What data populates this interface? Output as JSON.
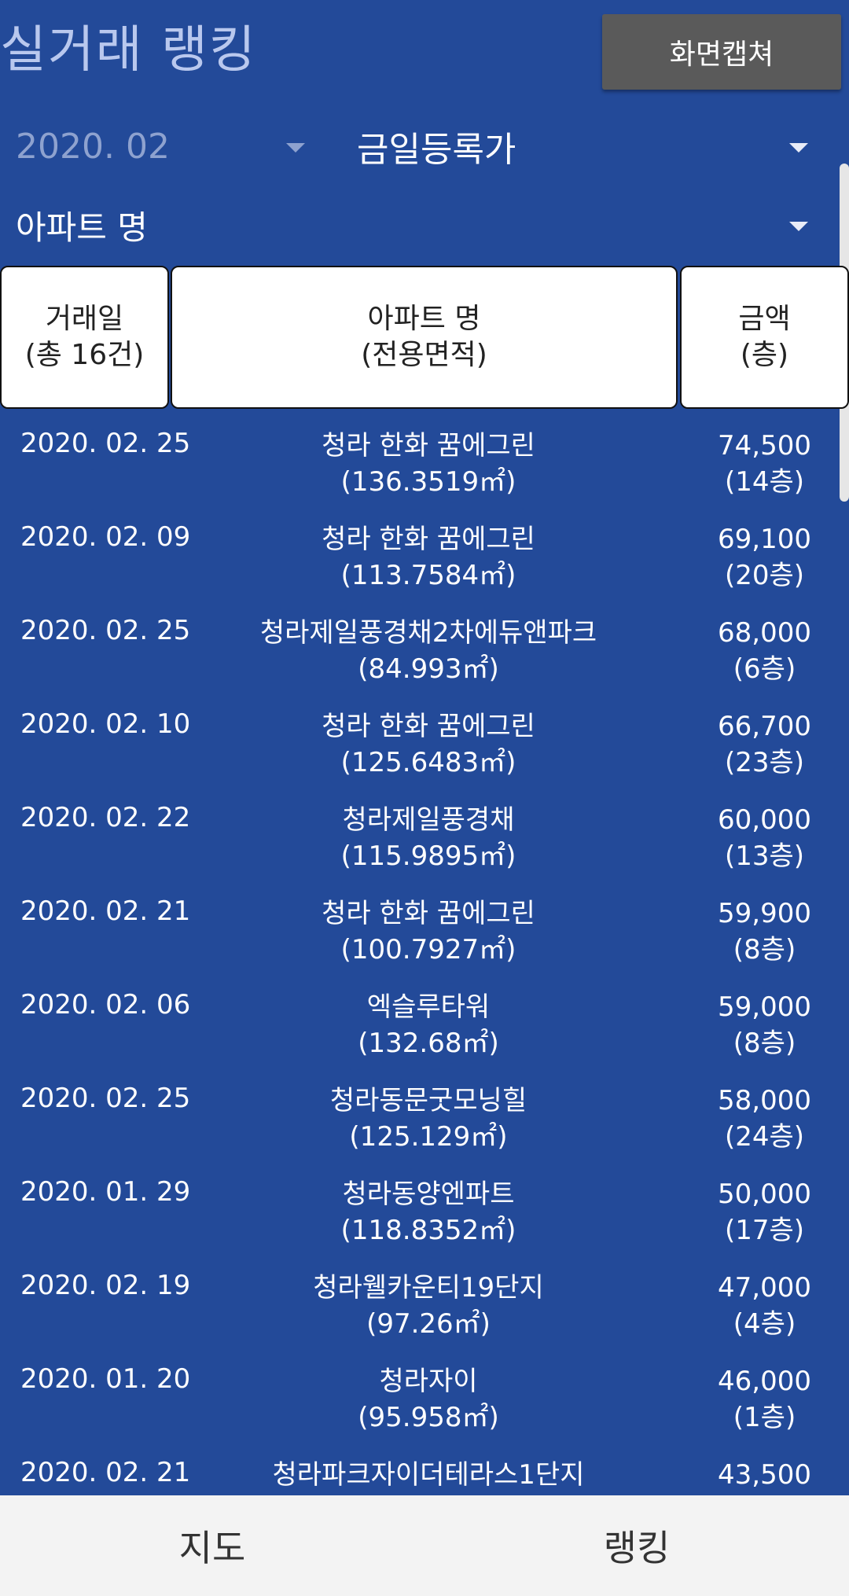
{
  "title": "실거래 랭킹",
  "capture_button": "화면캡쳐",
  "filters": {
    "month": "2020. 02",
    "sort": "금일등록가",
    "apartment": "아파트 명"
  },
  "table": {
    "headers": {
      "date": [
        "거래일",
        "(총 16건)"
      ],
      "name": [
        "아파트 명",
        "(전용면적)"
      ],
      "price": [
        "금액",
        "(층)"
      ]
    },
    "rows": [
      {
        "date": "2020. 02. 25",
        "name": "청라 한화 꿈에그린",
        "area": "(136.3519㎡)",
        "price": "74,500",
        "floor": "(14층)"
      },
      {
        "date": "2020. 02. 09",
        "name": "청라 한화 꿈에그린",
        "area": "(113.7584㎡)",
        "price": "69,100",
        "floor": "(20층)"
      },
      {
        "date": "2020. 02. 25",
        "name": "청라제일풍경채2차에듀앤파크",
        "area": "(84.993㎡)",
        "price": "68,000",
        "floor": "(6층)"
      },
      {
        "date": "2020. 02. 10",
        "name": "청라 한화 꿈에그린",
        "area": "(125.6483㎡)",
        "price": "66,700",
        "floor": "(23층)"
      },
      {
        "date": "2020. 02. 22",
        "name": "청라제일풍경채",
        "area": "(115.9895㎡)",
        "price": "60,000",
        "floor": "(13층)"
      },
      {
        "date": "2020. 02. 21",
        "name": "청라 한화 꿈에그린",
        "area": "(100.7927㎡)",
        "price": "59,900",
        "floor": "(8층)"
      },
      {
        "date": "2020. 02. 06",
        "name": "엑슬루타워",
        "area": "(132.68㎡)",
        "price": "59,000",
        "floor": "(8층)"
      },
      {
        "date": "2020. 02. 25",
        "name": "청라동문굿모닝힐",
        "area": "(125.129㎡)",
        "price": "58,000",
        "floor": "(24층)"
      },
      {
        "date": "2020. 01. 29",
        "name": "청라동양엔파트",
        "area": "(118.8352㎡)",
        "price": "50,000",
        "floor": "(17층)"
      },
      {
        "date": "2020. 02. 19",
        "name": "청라웰카운티19단지",
        "area": "(97.26㎡)",
        "price": "47,000",
        "floor": "(4층)"
      },
      {
        "date": "2020. 01. 20",
        "name": "청라자이",
        "area": "(95.958㎡)",
        "price": "46,000",
        "floor": "(1층)"
      },
      {
        "date": "2020. 02. 21",
        "name": "청라파크자이더테라스1단지",
        "area": "",
        "price": "43,500",
        "floor": ""
      }
    ]
  },
  "bottom_nav": {
    "map": "지도",
    "ranking": "랭킹"
  },
  "colors": {
    "background": "#234a99",
    "button": "#5a5a5a",
    "nav": "#f3f3f3"
  }
}
